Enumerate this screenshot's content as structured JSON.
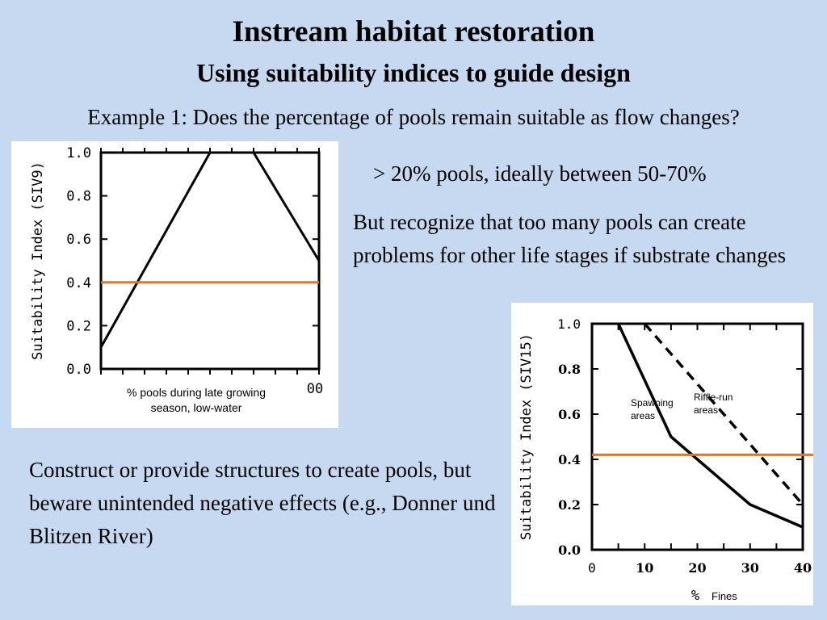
{
  "slide": {
    "title": "Instream habitat restoration",
    "subtitle": "Using suitability indices to guide design",
    "question": "Example 1: Does the percentage of pools remain suitable as flow changes?",
    "point1": "> 20% pools, ideally between 50-70%",
    "point2": "But recognize that too many pools can create problems for other life stages if substrate changes",
    "point3": "Construct or provide structures to create pools, but beware unintended negative effects (e.g., Donner und Blitzen River)"
  },
  "colors": {
    "background": "#c6d9f0",
    "threshold_line": "#e8731a"
  },
  "chart_data": [
    {
      "type": "line",
      "ylabel": "Suitability Index (SIV9)",
      "xlabel": "%  pools during late growing season, low-water",
      "x_tick_labels": [
        "00"
      ],
      "y_tick_labels": [
        "0.0",
        "0.2",
        "0.4",
        "0.6",
        "0.8",
        "1.0"
      ],
      "ylim": [
        0,
        1
      ],
      "xlim": [
        0,
        100
      ],
      "series": [
        {
          "x": [
            0,
            25,
            50,
            70,
            100
          ],
          "y": [
            0.1,
            0.55,
            1.0,
            1.0,
            0.5
          ]
        }
      ],
      "threshold": 0.4
    },
    {
      "type": "line",
      "ylabel": "Suitability Index (SIV15)",
      "xlabel": "Fines",
      "xlabel_unit": "%",
      "x_tick_labels": [
        "0",
        "10",
        "20",
        "30",
        "40"
      ],
      "y_tick_labels": [
        "0.0",
        "0.2",
        "0.4",
        "0.6",
        "0.8",
        "1.0"
      ],
      "ylim": [
        0,
        1
      ],
      "xlim": [
        0,
        40
      ],
      "series": [
        {
          "name": "Spawning areas",
          "style": "solid",
          "x": [
            5,
            10,
            15,
            20,
            30,
            40
          ],
          "y": [
            1.0,
            0.75,
            0.5,
            0.4,
            0.2,
            0.1
          ]
        },
        {
          "name": "Riffle-run areas",
          "style": "dashed",
          "x": [
            10,
            40
          ],
          "y": [
            1.0,
            0.2
          ]
        }
      ],
      "threshold": 0.42
    }
  ]
}
